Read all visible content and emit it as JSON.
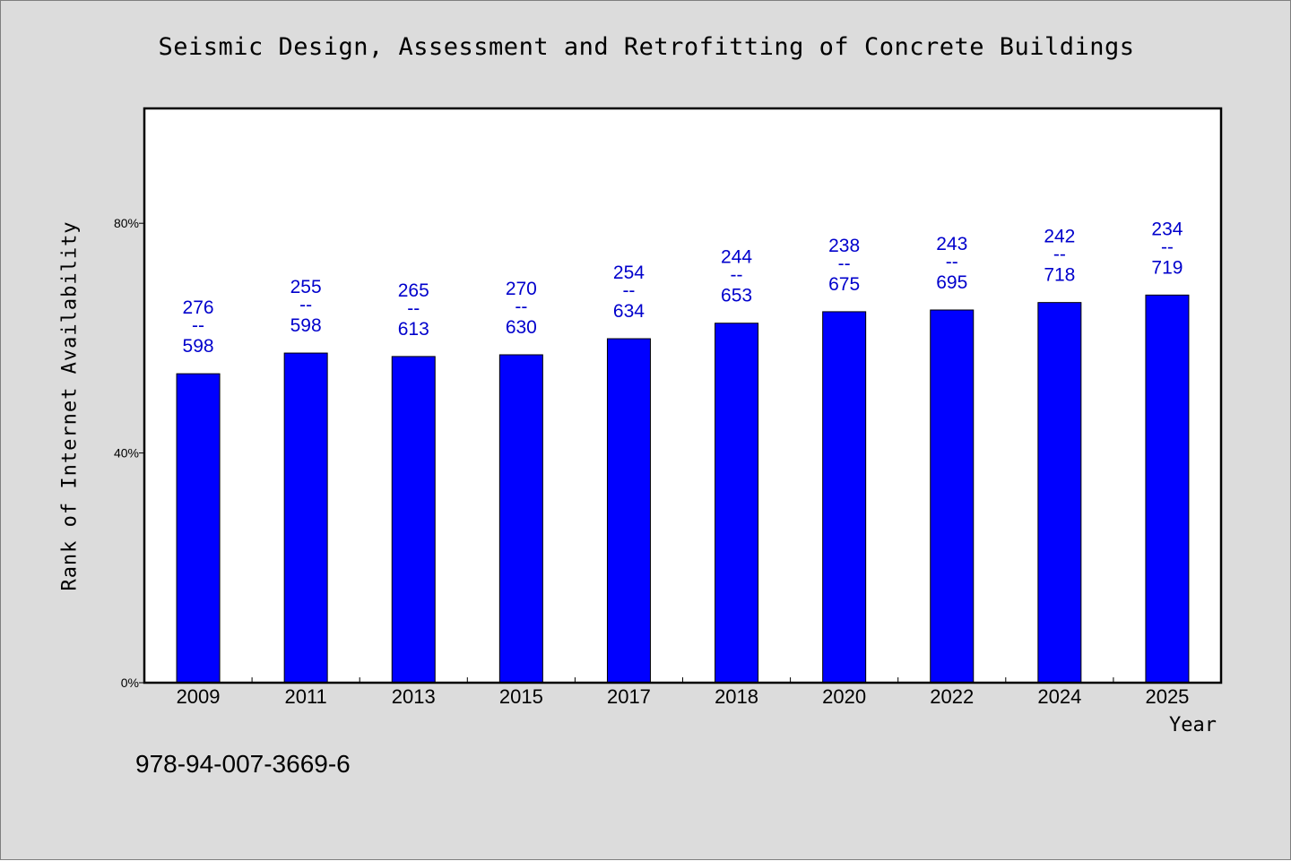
{
  "chart_data": {
    "type": "bar",
    "title": "Seismic Design, Assessment and Retrofitting of Concrete Buildings",
    "xlabel": "Year",
    "ylabel": "Rank of Internet Availability",
    "ylim": [
      0,
      100
    ],
    "yticks": [
      "0%",
      "40%",
      "80%"
    ],
    "ytick_values": [
      0,
      40,
      80
    ],
    "categories": [
      "2009",
      "2011",
      "2013",
      "2015",
      "2017",
      "2018",
      "2020",
      "2022",
      "2024",
      "2025"
    ],
    "values": [
      53.8,
      57.4,
      56.8,
      57.1,
      59.9,
      62.6,
      64.6,
      64.9,
      66.2,
      67.5
    ],
    "labels_top": [
      "276",
      "255",
      "265",
      "270",
      "254",
      "244",
      "238",
      "243",
      "242",
      "234"
    ],
    "label_separator": "--",
    "labels_bottom": [
      "598",
      "598",
      "613",
      "630",
      "634",
      "653",
      "675",
      "695",
      "718",
      "719"
    ],
    "bar_color": "#0000ff",
    "label_color": "#0000cc",
    "grid": false,
    "legend": "none"
  },
  "footer": {
    "isbn": "978-94-007-3669-6"
  }
}
